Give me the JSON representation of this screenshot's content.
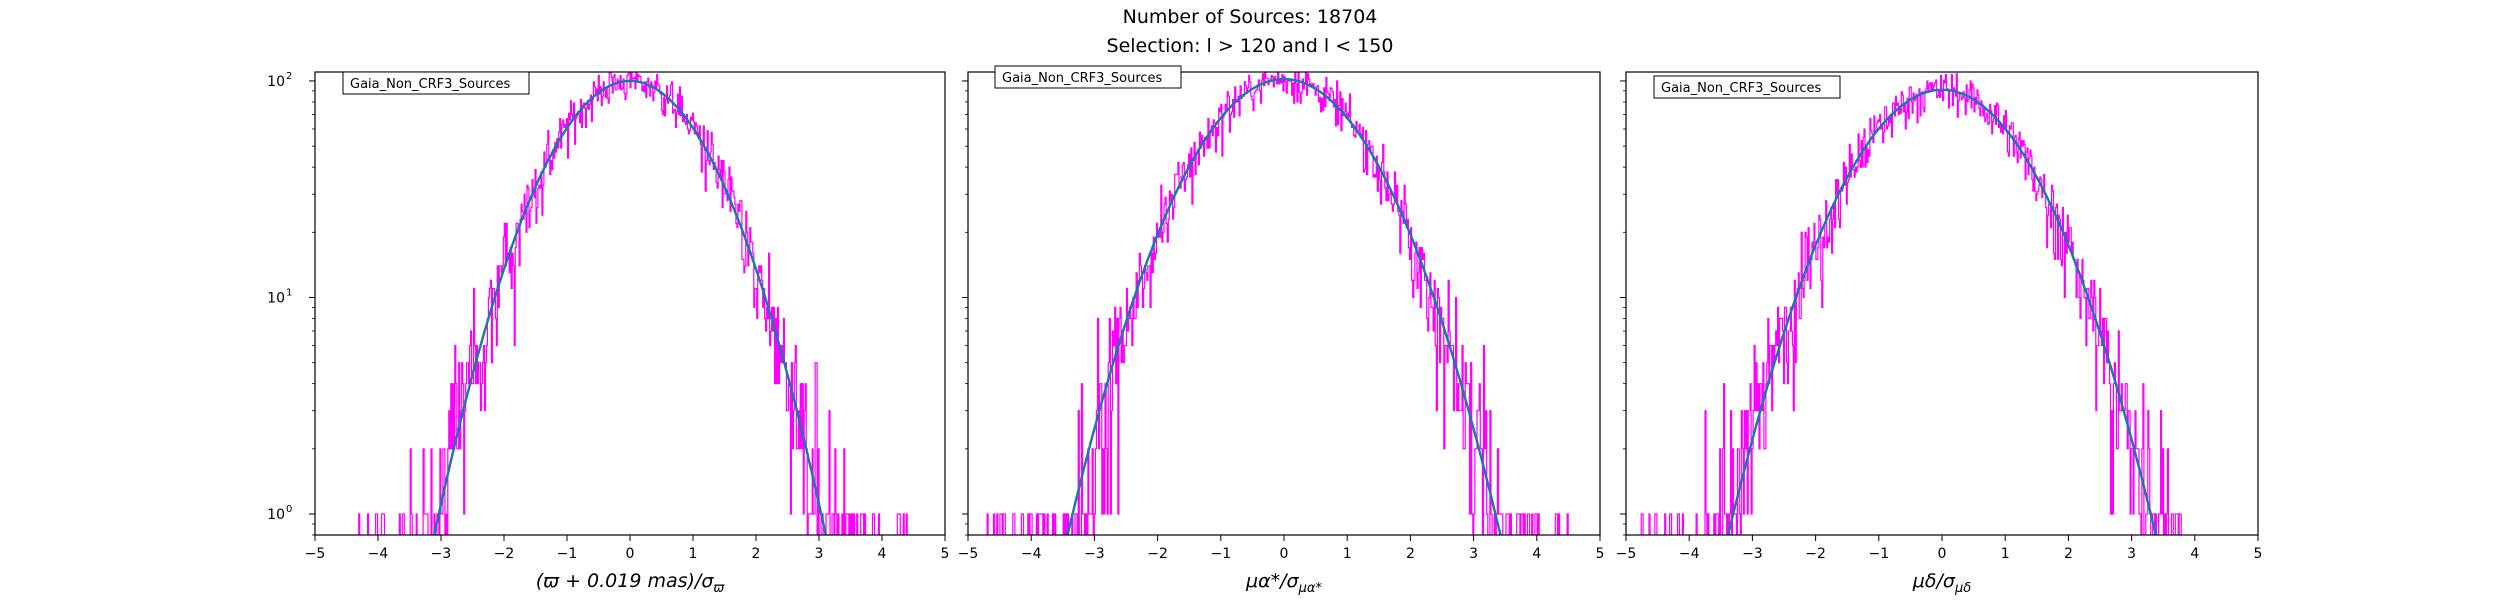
{
  "figure": {
    "title_line1": "Number of Sources: 18704",
    "title_line2": "Selection: l > 120 and l < 150"
  },
  "colors": {
    "histogram": "#ff00ff",
    "curve_outer": "#008080",
    "curve_inner": "#1f77b4",
    "axes": "#000000",
    "background": "#ffffff"
  },
  "chart_data": [
    {
      "type": "histogram",
      "legend": "Gaia_Non_CRF3_Sources",
      "legend_position": "upper left",
      "xlabel": "(ϖ + 0.019 mas)/σϖ",
      "xlabel_parts": {
        "main": "(ϖ + 0.019 mas)/σ",
        "sub": "ϖ"
      },
      "xlim": [
        -5,
        5
      ],
      "ylim": [
        0.8,
        110
      ],
      "yscale": "log",
      "xticks": [
        -5,
        -4,
        -3,
        -2,
        -1,
        0,
        1,
        2,
        3,
        4,
        5
      ],
      "yticks": [
        {
          "value": 1,
          "base": "10",
          "exp": "0"
        },
        {
          "value": 10,
          "base": "10",
          "exp": "1"
        },
        {
          "value": 100,
          "base": "10",
          "exp": "2"
        }
      ],
      "gaussian": {
        "amplitude": 100,
        "mean": 0.0,
        "sigma": 1.0
      },
      "histogram_range": [
        -4.4,
        4.4
      ],
      "grid": false
    },
    {
      "type": "histogram",
      "legend": "Gaia_Non_CRF3_Sources",
      "legend_position": "upper left",
      "xlabel": "μα*/σμα*",
      "xlabel_parts": {
        "main": "μα*/σ",
        "sub": "μα*"
      },
      "xlim": [
        -5,
        5
      ],
      "ylim": [
        0.8,
        110
      ],
      "yscale": "log",
      "xticks": [
        -5,
        -4,
        -3,
        -2,
        -1,
        0,
        1,
        2,
        3,
        4,
        5
      ],
      "yticks": [
        {
          "value": 1,
          "base": "10",
          "exp": "0"
        },
        {
          "value": 10,
          "base": "10",
          "exp": "1"
        },
        {
          "value": 100,
          "base": "10",
          "exp": "2"
        }
      ],
      "gaussian": {
        "amplitude": 102,
        "mean": 0.0,
        "sigma": 1.1
      },
      "histogram_range": [
        -4.8,
        4.7
      ],
      "grid": false
    },
    {
      "type": "histogram",
      "legend": "Gaia_Non_CRF3_Sources",
      "legend_position": "upper left",
      "xlabel": "μδ/σμδ",
      "xlabel_parts": {
        "main": "μδ/σ",
        "sub": "μδ"
      },
      "xlim": [
        -5,
        5
      ],
      "ylim": [
        0.8,
        110
      ],
      "yscale": "log",
      "xticks": [
        -5,
        -4,
        -3,
        -2,
        -1,
        0,
        1,
        2,
        3,
        4,
        5
      ],
      "yticks": [
        {
          "value": 1,
          "base": "10",
          "exp": "0"
        },
        {
          "value": 10,
          "base": "10",
          "exp": "1"
        },
        {
          "value": 100,
          "base": "10",
          "exp": "2"
        }
      ],
      "gaussian": {
        "amplitude": 91,
        "mean": 0.0,
        "sigma": 1.1
      },
      "histogram_range": [
        -4.9,
        3.8
      ],
      "grid": false
    }
  ]
}
